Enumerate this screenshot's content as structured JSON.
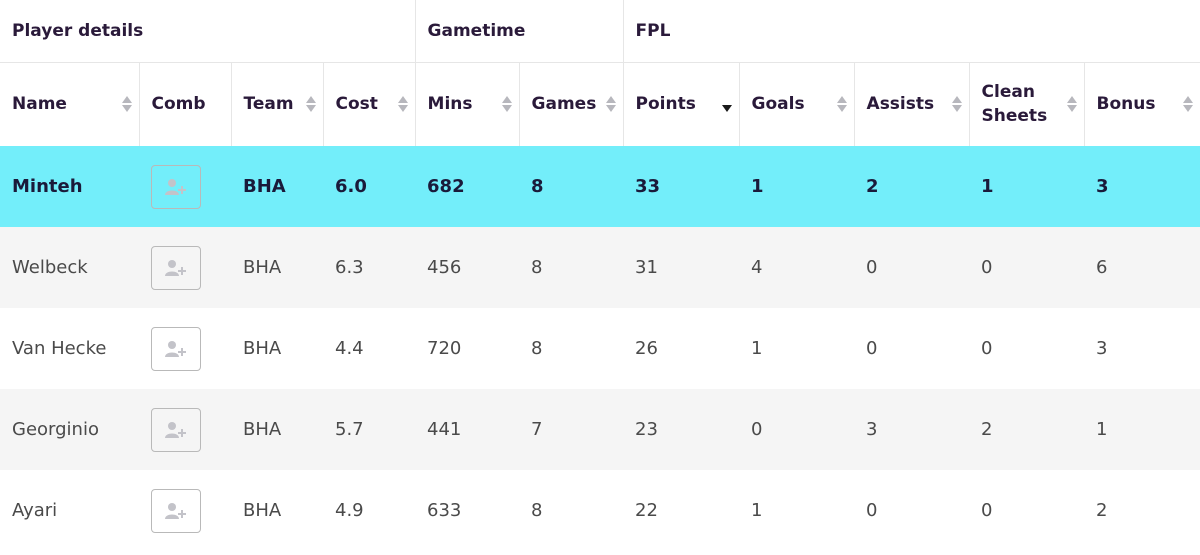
{
  "groups": [
    {
      "label": "Player details",
      "span": 4
    },
    {
      "label": "Gametime",
      "span": 2
    },
    {
      "label": "FPL",
      "span": 6
    }
  ],
  "columns": [
    {
      "key": "name",
      "label": "Name",
      "sortable": true
    },
    {
      "key": "comb",
      "label": "Comb",
      "sortable": false
    },
    {
      "key": "team",
      "label": "Team",
      "sortable": true
    },
    {
      "key": "cost",
      "label": "Cost",
      "sortable": true
    },
    {
      "key": "mins",
      "label": "Mins",
      "sortable": true
    },
    {
      "key": "games",
      "label": "Games",
      "sortable": true
    },
    {
      "key": "points",
      "label": "Points",
      "sortable": true,
      "sorted": "desc"
    },
    {
      "key": "goals",
      "label": "Goals",
      "sortable": true
    },
    {
      "key": "assists",
      "label": "Assists",
      "sortable": true
    },
    {
      "key": "clean_sheets",
      "label": "Clean Sheets",
      "sortable": true
    },
    {
      "key": "bonus",
      "label": "Bonus",
      "sortable": true
    }
  ],
  "rows": [
    {
      "name": "Minteh",
      "team": "BHA",
      "cost": "6.0",
      "mins": "682",
      "games": "8",
      "points": "33",
      "goals": "1",
      "assists": "2",
      "clean_sheets": "1",
      "bonus": "3",
      "highlighted": true
    },
    {
      "name": "Welbeck",
      "team": "BHA",
      "cost": "6.3",
      "mins": "456",
      "games": "8",
      "points": "31",
      "goals": "4",
      "assists": "0",
      "clean_sheets": "0",
      "bonus": "6",
      "highlighted": false
    },
    {
      "name": "Van Hecke",
      "team": "BHA",
      "cost": "4.4",
      "mins": "720",
      "games": "8",
      "points": "26",
      "goals": "1",
      "assists": "0",
      "clean_sheets": "0",
      "bonus": "3",
      "highlighted": false
    },
    {
      "name": "Georginio",
      "team": "BHA",
      "cost": "5.7",
      "mins": "441",
      "games": "7",
      "points": "23",
      "goals": "0",
      "assists": "3",
      "clean_sheets": "2",
      "bonus": "1",
      "highlighted": false
    },
    {
      "name": "Ayari",
      "team": "BHA",
      "cost": "4.9",
      "mins": "633",
      "games": "8",
      "points": "22",
      "goals": "1",
      "assists": "0",
      "clean_sheets": "0",
      "bonus": "2",
      "highlighted": false
    }
  ],
  "colors": {
    "highlight": "#73eefa",
    "stripe": "#f5f5f5",
    "text": "#4a4a4a",
    "header_text": "#2a1a3a"
  },
  "icons": {
    "comb": "add-person-icon",
    "sort": "sort-arrows-icon"
  }
}
